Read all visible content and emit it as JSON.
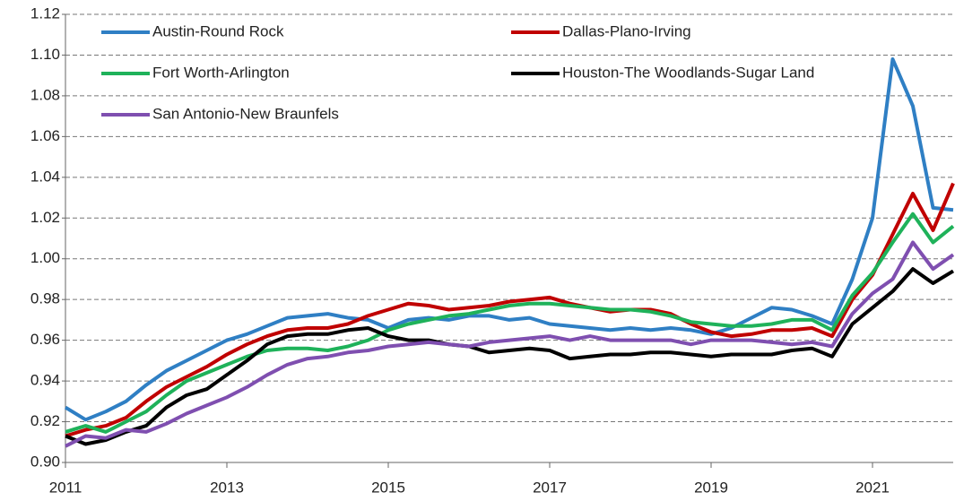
{
  "chart_data": {
    "type": "line",
    "x": [
      2011,
      2011.25,
      2011.5,
      2011.75,
      2012,
      2012.25,
      2012.5,
      2012.75,
      2013,
      2013.25,
      2013.5,
      2013.75,
      2014,
      2014.25,
      2014.5,
      2014.75,
      2015,
      2015.25,
      2015.5,
      2015.75,
      2016,
      2016.25,
      2016.5,
      2016.75,
      2017,
      2017.25,
      2017.5,
      2017.75,
      2018,
      2018.25,
      2018.5,
      2018.75,
      2019,
      2019.25,
      2019.5,
      2019.75,
      2020,
      2020.25,
      2020.5,
      2020.75,
      2021,
      2021.25,
      2021.5,
      2021.75,
      2022
    ],
    "series": [
      {
        "name": "Austin-Round Rock",
        "color": "#2f7fc4",
        "values": [
          0.927,
          0.921,
          0.925,
          0.93,
          0.938,
          0.945,
          0.95,
          0.955,
          0.96,
          0.963,
          0.967,
          0.971,
          0.972,
          0.973,
          0.971,
          0.97,
          0.966,
          0.97,
          0.971,
          0.97,
          0.972,
          0.972,
          0.97,
          0.971,
          0.968,
          0.967,
          0.966,
          0.965,
          0.966,
          0.965,
          0.966,
          0.965,
          0.963,
          0.966,
          0.971,
          0.976,
          0.975,
          0.972,
          0.968,
          0.99,
          1.02,
          1.098,
          1.075,
          1.025,
          1.024
        ]
      },
      {
        "name": "Dallas-Plano-Irving",
        "color": "#c00000",
        "values": [
          0.913,
          0.916,
          0.918,
          0.922,
          0.93,
          0.937,
          0.942,
          0.947,
          0.953,
          0.958,
          0.962,
          0.965,
          0.966,
          0.966,
          0.968,
          0.972,
          0.975,
          0.978,
          0.977,
          0.975,
          0.976,
          0.977,
          0.979,
          0.98,
          0.981,
          0.978,
          0.976,
          0.974,
          0.975,
          0.975,
          0.973,
          0.968,
          0.964,
          0.962,
          0.963,
          0.965,
          0.965,
          0.966,
          0.962,
          0.98,
          0.992,
          1.012,
          1.032,
          1.014,
          1.037
        ]
      },
      {
        "name": "Fort Worth-Arlington",
        "color": "#1fb25a",
        "values": [
          0.915,
          0.918,
          0.915,
          0.92,
          0.925,
          0.933,
          0.94,
          0.944,
          0.948,
          0.952,
          0.955,
          0.956,
          0.956,
          0.955,
          0.957,
          0.96,
          0.965,
          0.968,
          0.97,
          0.972,
          0.973,
          0.975,
          0.977,
          0.978,
          0.978,
          0.977,
          0.976,
          0.975,
          0.975,
          0.974,
          0.972,
          0.969,
          0.968,
          0.967,
          0.967,
          0.968,
          0.97,
          0.97,
          0.965,
          0.982,
          0.993,
          1.008,
          1.022,
          1.008,
          1.016
        ]
      },
      {
        "name": "Houston-The Woodlands-Sugar Land",
        "color": "#000000",
        "values": [
          0.913,
          0.909,
          0.911,
          0.915,
          0.918,
          0.927,
          0.933,
          0.936,
          0.943,
          0.95,
          0.958,
          0.962,
          0.963,
          0.963,
          0.965,
          0.966,
          0.962,
          0.96,
          0.96,
          0.958,
          0.957,
          0.954,
          0.955,
          0.956,
          0.955,
          0.951,
          0.952,
          0.953,
          0.953,
          0.954,
          0.954,
          0.953,
          0.952,
          0.953,
          0.953,
          0.953,
          0.955,
          0.956,
          0.952,
          0.968,
          0.976,
          0.984,
          0.995,
          0.988,
          0.994
        ]
      },
      {
        "name": "San Antonio-New Braunfels",
        "color": "#7f4fb0",
        "values": [
          0.908,
          0.913,
          0.912,
          0.916,
          0.915,
          0.919,
          0.924,
          0.928,
          0.932,
          0.937,
          0.943,
          0.948,
          0.951,
          0.952,
          0.954,
          0.955,
          0.957,
          0.958,
          0.959,
          0.958,
          0.957,
          0.959,
          0.96,
          0.961,
          0.962,
          0.96,
          0.962,
          0.96,
          0.96,
          0.96,
          0.96,
          0.958,
          0.96,
          0.96,
          0.96,
          0.959,
          0.958,
          0.959,
          0.957,
          0.973,
          0.983,
          0.99,
          1.008,
          0.995,
          1.002
        ]
      }
    ],
    "xlim": [
      2011,
      2022
    ],
    "xticks": [
      2011,
      2013,
      2015,
      2017,
      2019,
      2021
    ],
    "ylim": [
      0.9,
      1.12
    ],
    "yticks": [
      {
        "value": 0.9,
        "label": "0.90"
      },
      {
        "value": 0.92,
        "label": "0.92"
      },
      {
        "value": 0.94,
        "label": "0.94"
      },
      {
        "value": 0.96,
        "label": "0.96"
      },
      {
        "value": 0.98,
        "label": "0.98"
      },
      {
        "value": 1.0,
        "label": "1.00"
      },
      {
        "value": 1.02,
        "label": "1.02"
      },
      {
        "value": 1.04,
        "label": "1.04"
      },
      {
        "value": 1.06,
        "label": "1.06"
      },
      {
        "value": 1.08,
        "label": "1.08"
      },
      {
        "value": 1.1,
        "label": "1.10"
      },
      {
        "value": 1.12,
        "label": "1.12"
      }
    ],
    "grid": true,
    "legend": "upper-left"
  }
}
